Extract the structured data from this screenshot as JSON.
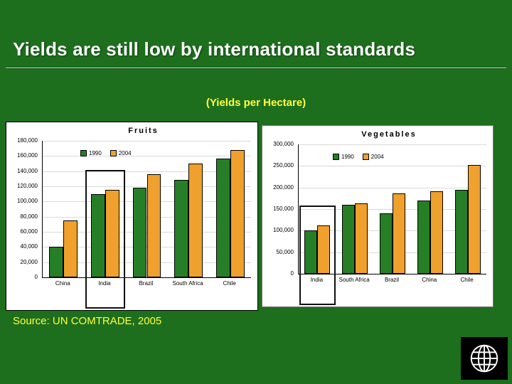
{
  "slide": {
    "title": "Yields are still low by international standards",
    "subtitle": "(Yields per Hectare)",
    "source": "Source: UN COMTRADE, 2005",
    "logo_icon": "globe-icon"
  },
  "colors": {
    "background": "#1d6f1d",
    "accent_yellow": "#ffff40",
    "chart_panel": "#ffffff"
  },
  "chart_data": [
    {
      "type": "bar",
      "title": "Fruits",
      "categories": [
        "China",
        "India",
        "Brazil",
        "South Africa",
        "Chile"
      ],
      "series": [
        {
          "name": "1990",
          "color": "#267f26",
          "values": [
            40000,
            110000,
            118000,
            128000,
            157000
          ]
        },
        {
          "name": "2004",
          "color": "#f0a02c",
          "values": [
            75000,
            115000,
            136000,
            150000,
            168000
          ]
        }
      ],
      "ylim": [
        0,
        180000
      ],
      "ytick_step": 20000,
      "grid": true,
      "legend_position": "upper-left-inside",
      "highlight_category": "India"
    },
    {
      "type": "bar",
      "title": "Vegetables",
      "categories": [
        "India",
        "South Africa",
        "Brazil",
        "China",
        "Chile"
      ],
      "series": [
        {
          "name": "1990",
          "color": "#267f26",
          "values": [
            100000,
            160000,
            140000,
            170000,
            195000
          ]
        },
        {
          "name": "2004",
          "color": "#f0a02c",
          "values": [
            112000,
            163000,
            187000,
            192000,
            253000
          ]
        }
      ],
      "ylim": [
        0,
        300000
      ],
      "ytick_step": 50000,
      "grid": true,
      "legend_position": "upper-left-inside",
      "highlight_category": "India"
    }
  ]
}
